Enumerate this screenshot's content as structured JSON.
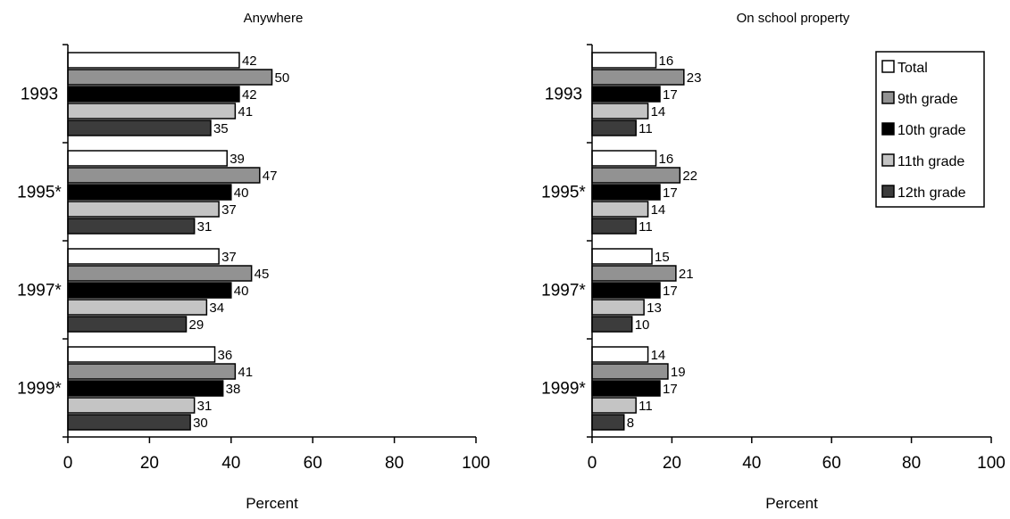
{
  "colors": {
    "Total": "#ffffff",
    "9th grade": "#929292",
    "10th grade": "#000000",
    "11th grade": "#c4c4c4",
    "12th grade": "#3c3c3c"
  },
  "chart_data": [
    {
      "type": "bar",
      "orientation": "horizontal",
      "title": "Anywhere",
      "xlabel": "Percent",
      "ylabel": "",
      "xlim": [
        0,
        100
      ],
      "xticks": [
        "0",
        "20",
        "40",
        "60",
        "80",
        "100"
      ],
      "categories": [
        "1993",
        "1995*",
        "1997*",
        "1999*"
      ],
      "series": [
        {
          "name": "Total",
          "values": [
            42,
            39,
            37,
            36
          ]
        },
        {
          "name": "9th grade",
          "values": [
            50,
            47,
            45,
            41
          ]
        },
        {
          "name": "10th grade",
          "values": [
            42,
            40,
            40,
            38
          ]
        },
        {
          "name": "11th grade",
          "values": [
            41,
            37,
            34,
            31
          ]
        },
        {
          "name": "12th grade",
          "values": [
            35,
            31,
            29,
            30
          ]
        }
      ],
      "grid": false,
      "legend": "none"
    },
    {
      "type": "bar",
      "orientation": "horizontal",
      "title": "On school property",
      "xlabel": "Percent",
      "ylabel": "",
      "xlim": [
        0,
        100
      ],
      "xticks": [
        "0",
        "20",
        "40",
        "60",
        "80",
        "100"
      ],
      "categories": [
        "1993",
        "1995*",
        "1997*",
        "1999*"
      ],
      "series": [
        {
          "name": "Total",
          "values": [
            16,
            16,
            15,
            14
          ]
        },
        {
          "name": "9th grade",
          "values": [
            23,
            22,
            21,
            19
          ]
        },
        {
          "name": "10th grade",
          "values": [
            17,
            17,
            17,
            17
          ]
        },
        {
          "name": "11th grade",
          "values": [
            14,
            14,
            13,
            11
          ]
        },
        {
          "name": "12th grade",
          "values": [
            11,
            11,
            10,
            8
          ]
        }
      ],
      "grid": false,
      "legend": "top-right",
      "legend_entries": [
        "Total",
        "9th grade",
        "10th grade",
        "11th grade",
        "12th grade"
      ]
    }
  ]
}
